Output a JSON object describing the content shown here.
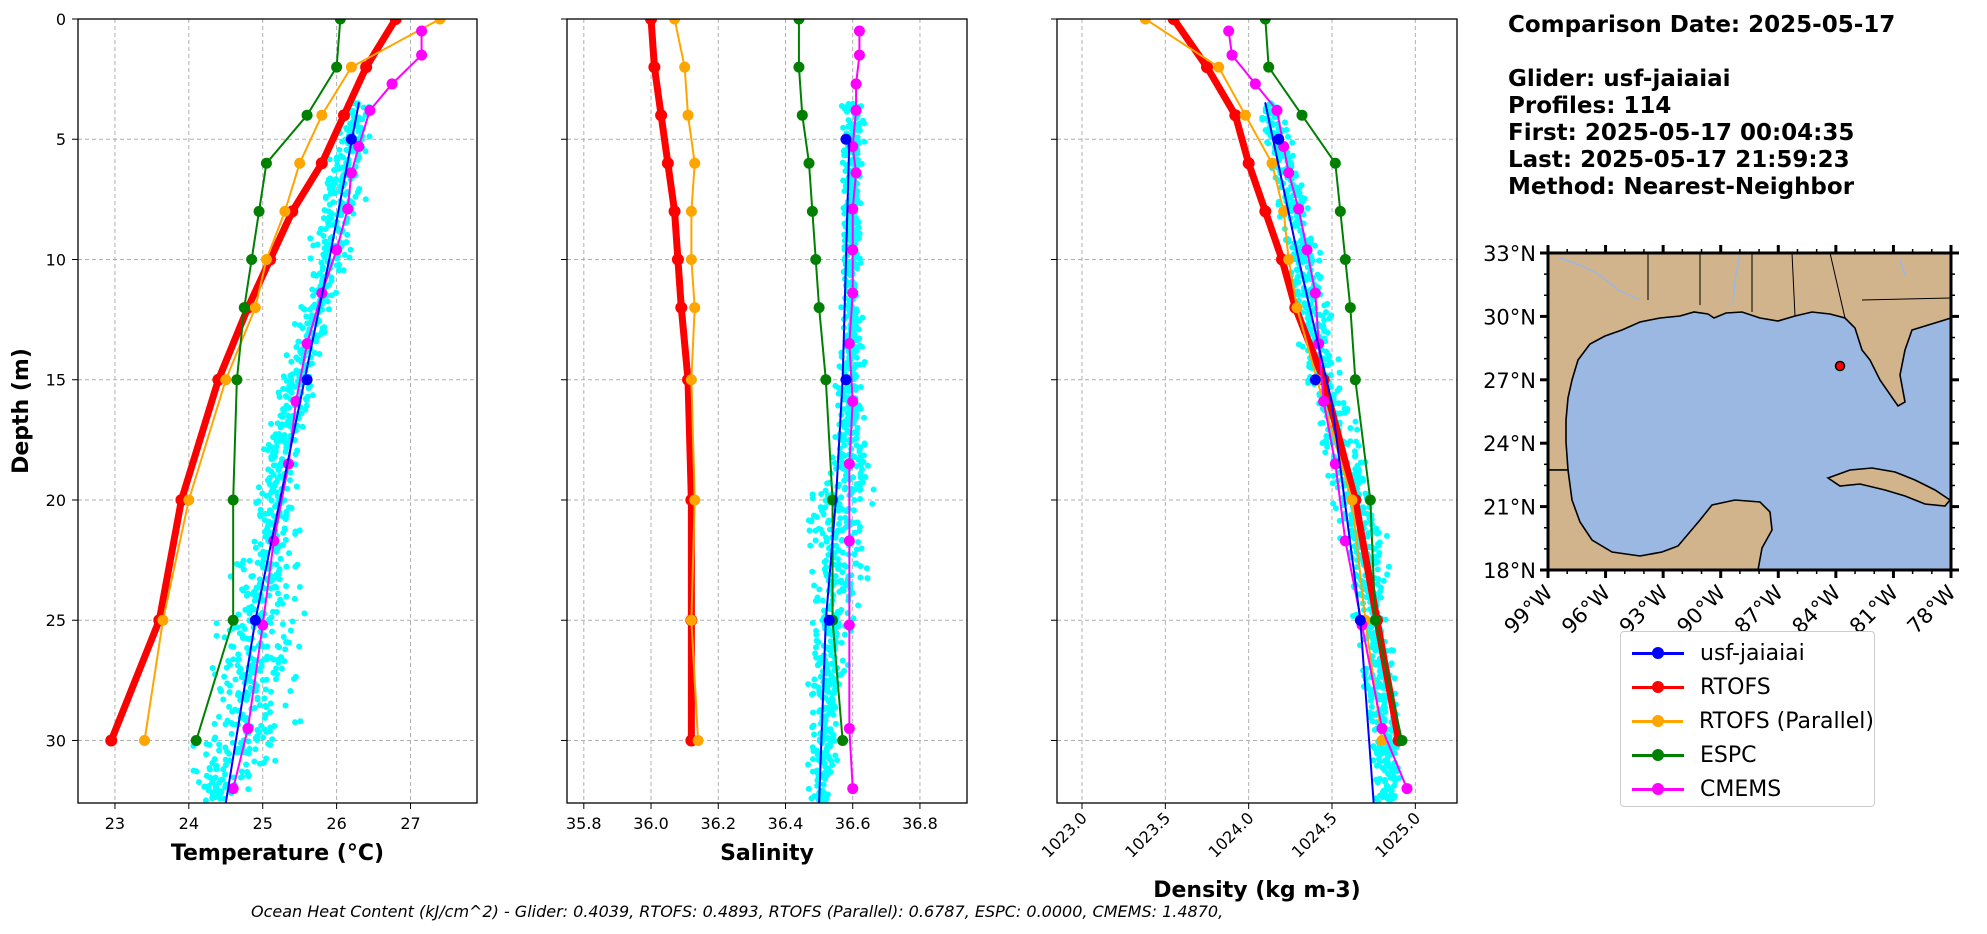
{
  "info": {
    "comparison_date": "Comparison Date: 2025-05-17",
    "glider": "Glider: usf-jaiaiai",
    "profiles": "Profiles: 114",
    "first": "First: 2025-05-17 00:04:35",
    "last": "Last: 2025-05-17 21:59:23",
    "method": "Method: Nearest-Neighbor"
  },
  "footer": "Ocean Heat Content (kJ/cm^2) - Glider: 0.4039,  RTOFS: 0.4893,  RTOFS (Parallel): 0.6787,  ESPC: 0.0000,  CMEMS: 1.4870,",
  "colors": {
    "glider": "#0000ff",
    "scatter": "#00ffff",
    "rtofs": "#ff0000",
    "rtofs_parallel": "#ffa500",
    "espc": "#008000",
    "cmems": "#ff00ff",
    "land": "#d2b48c",
    "ocean": "#9ab8e2"
  },
  "legend": [
    {
      "label": "usf-jaiaiai",
      "color": "#0000ff"
    },
    {
      "label": "RTOFS",
      "color": "#ff0000"
    },
    {
      "label": "RTOFS (Parallel)",
      "color": "#ffa500"
    },
    {
      "label": "ESPC",
      "color": "#008000"
    },
    {
      "label": "CMEMS",
      "color": "#ff00ff"
    }
  ],
  "chart_data": [
    {
      "type": "line",
      "xlabel": "Temperature (°C)",
      "ylabel": "Depth (m)",
      "xlim": [
        22.5,
        27.9
      ],
      "ylim": [
        32.6,
        0
      ],
      "xticks": [
        "23",
        "24",
        "25",
        "26",
        "27"
      ],
      "yticks": [
        "0",
        "5",
        "10",
        "15",
        "20",
        "25",
        "30"
      ],
      "grid": true,
      "series": [
        {
          "name": "usf-jaiaiai",
          "x": [
            26.2,
            25.6,
            24.9
          ],
          "y": [
            5,
            15,
            25
          ],
          "line_x": [
            26.3,
            25.9,
            25.5,
            24.9,
            24.5
          ],
          "line_y": [
            3.5,
            10,
            16,
            25,
            32.6
          ]
        },
        {
          "name": "RTOFS",
          "x": [
            26.8,
            26.4,
            26.1,
            25.8,
            25.4,
            25.1,
            24.8,
            24.4,
            23.9,
            23.6,
            22.95
          ],
          "y": [
            0,
            2,
            4,
            6,
            8,
            10,
            12,
            15,
            20,
            25,
            30
          ]
        },
        {
          "name": "RTOFS (Parallel)",
          "x": [
            27.4,
            26.2,
            25.8,
            25.5,
            25.3,
            25.05,
            24.9,
            24.5,
            24.0,
            23.65,
            23.4
          ],
          "y": [
            0,
            2,
            4,
            6,
            8,
            10,
            12,
            15,
            20,
            25,
            30
          ]
        },
        {
          "name": "ESPC",
          "x": [
            26.05,
            26.0,
            25.6,
            25.05,
            24.95,
            24.85,
            24.75,
            24.65,
            24.6,
            24.6,
            24.1
          ],
          "y": [
            0,
            2,
            4,
            6,
            8,
            10,
            12,
            15,
            20,
            25,
            30
          ]
        },
        {
          "name": "CMEMS",
          "x": [
            27.15,
            27.15,
            26.75,
            26.45,
            26.3,
            26.2,
            26.15,
            26.0,
            25.8,
            25.6,
            25.45,
            25.35,
            25.15,
            25.0,
            24.8,
            24.6
          ],
          "y": [
            0.5,
            1.5,
            2.7,
            3.8,
            5.3,
            6.4,
            7.9,
            9.6,
            11.4,
            13.5,
            15.9,
            18.5,
            21.7,
            25.2,
            29.5,
            32.0
          ]
        }
      ],
      "scatter_band": [
        {
          "y": 3.5,
          "x": [
            26.1,
            26.5
          ]
        },
        {
          "y": 8,
          "x": [
            25.7,
            26.4
          ]
        },
        {
          "y": 14,
          "x": [
            25.3,
            25.8
          ]
        },
        {
          "y": 19,
          "x": [
            24.9,
            25.5
          ]
        },
        {
          "y": 22,
          "x": [
            24.7,
            25.5
          ]
        },
        {
          "y": 26,
          "x": [
            24.1,
            25.7
          ]
        },
        {
          "y": 30,
          "x": [
            24.0,
            25.5
          ]
        },
        {
          "y": 32.6,
          "x": [
            24.0,
            24.7
          ]
        }
      ]
    },
    {
      "type": "line",
      "xlabel": "Salinity",
      "xlim": [
        35.75,
        36.94
      ],
      "ylim": [
        32.6,
        0
      ],
      "xticks": [
        "35.8",
        "36.0",
        "36.2",
        "36.4",
        "36.6",
        "36.8"
      ],
      "grid": true,
      "series": [
        {
          "name": "usf-jaiaiai",
          "x": [
            36.58,
            36.58,
            36.53
          ],
          "y": [
            5,
            15,
            25
          ],
          "line_x": [
            36.59,
            36.57,
            36.55,
            36.52,
            36.5
          ],
          "line_y": [
            5,
            15,
            20,
            25,
            32.6
          ]
        },
        {
          "name": "RTOFS",
          "x": [
            36.0,
            36.01,
            36.03,
            36.05,
            36.07,
            36.08,
            36.09,
            36.11,
            36.12,
            36.12,
            36.12
          ],
          "y": [
            0,
            2,
            4,
            6,
            8,
            10,
            12,
            15,
            20,
            25,
            30
          ]
        },
        {
          "name": "RTOFS (Parallel)",
          "x": [
            36.07,
            36.1,
            36.11,
            36.13,
            36.12,
            36.12,
            36.13,
            36.12,
            36.13,
            36.12,
            36.14
          ],
          "y": [
            0,
            2,
            4,
            6,
            8,
            10,
            12,
            15,
            20,
            25,
            30
          ]
        },
        {
          "name": "ESPC",
          "x": [
            36.44,
            36.44,
            36.45,
            36.47,
            36.48,
            36.49,
            36.5,
            36.52,
            36.54,
            36.54,
            36.57
          ],
          "y": [
            0,
            2,
            4,
            6,
            8,
            10,
            12,
            15,
            20,
            25,
            30
          ]
        },
        {
          "name": "CMEMS",
          "x": [
            36.62,
            36.62,
            36.61,
            36.61,
            36.6,
            36.61,
            36.6,
            36.6,
            36.6,
            36.59,
            36.6,
            36.59,
            36.59,
            36.59,
            36.59,
            36.6
          ],
          "y": [
            0.5,
            1.5,
            2.7,
            3.8,
            5.3,
            6.4,
            7.9,
            9.6,
            11.4,
            13.5,
            15.9,
            18.5,
            21.7,
            25.2,
            29.5,
            32.0
          ]
        }
      ],
      "scatter_band": [
        {
          "y": 3.5,
          "x": [
            36.56,
            36.64
          ]
        },
        {
          "y": 12,
          "x": [
            36.56,
            36.63
          ]
        },
        {
          "y": 18,
          "x": [
            36.53,
            36.65
          ]
        },
        {
          "y": 20,
          "x": [
            36.45,
            36.68
          ]
        },
        {
          "y": 23,
          "x": [
            36.45,
            36.68
          ]
        },
        {
          "y": 26,
          "x": [
            36.46,
            36.6
          ]
        },
        {
          "y": 32.6,
          "x": [
            36.47,
            36.55
          ]
        }
      ]
    },
    {
      "type": "line",
      "xlabel": "Density (kg m-3)",
      "xlim": [
        1022.85,
        1025.25
      ],
      "ylim": [
        32.6,
        0
      ],
      "xticks": [
        "1023.0",
        "1023.5",
        "1024.0",
        "1024.5",
        "1025.0"
      ],
      "grid": true,
      "series": [
        {
          "name": "usf-jaiaiai",
          "x": [
            1024.18,
            1024.4,
            1024.67
          ],
          "y": [
            5,
            15,
            25
          ],
          "line_x": [
            1024.1,
            1024.3,
            1024.5,
            1024.67,
            1024.75
          ],
          "line_y": [
            3.5,
            10,
            16,
            25,
            32.6
          ]
        },
        {
          "name": "RTOFS",
          "x": [
            1023.55,
            1023.75,
            1023.92,
            1024.0,
            1024.1,
            1024.2,
            1024.28,
            1024.45,
            1024.64,
            1024.77,
            1024.9
          ],
          "y": [
            0,
            2,
            4,
            6,
            8,
            10,
            12,
            15,
            20,
            25,
            30
          ]
        },
        {
          "name": "RTOFS (Parallel)",
          "x": [
            1023.38,
            1023.82,
            1023.98,
            1024.14,
            1024.21,
            1024.24,
            1024.29,
            1024.41,
            1024.62,
            1024.7,
            1024.8
          ],
          "y": [
            0,
            2,
            4,
            6,
            8,
            10,
            12,
            15,
            20,
            25,
            30
          ]
        },
        {
          "name": "ESPC",
          "x": [
            1024.1,
            1024.12,
            1024.32,
            1024.52,
            1024.55,
            1024.58,
            1024.61,
            1024.64,
            1024.73,
            1024.76,
            1024.92
          ],
          "y": [
            0,
            2,
            4,
            6,
            8,
            10,
            12,
            15,
            20,
            25,
            30
          ]
        },
        {
          "name": "CMEMS",
          "x": [
            1023.88,
            1023.9,
            1024.04,
            1024.17,
            1024.21,
            1024.24,
            1024.3,
            1024.35,
            1024.4,
            1024.42,
            1024.45,
            1024.52,
            1024.58,
            1024.68,
            1024.8,
            1024.95
          ],
          "y": [
            0.5,
            1.5,
            2.7,
            3.8,
            5.3,
            6.4,
            7.9,
            9.6,
            11.4,
            13.5,
            15.9,
            18.5,
            21.7,
            25.2,
            29.5,
            32.0
          ]
        }
      ],
      "scatter_band": [
        {
          "y": 3.5,
          "x": [
            1024.05,
            1024.2
          ]
        },
        {
          "y": 8,
          "x": [
            1024.15,
            1024.4
          ]
        },
        {
          "y": 14,
          "x": [
            1024.3,
            1024.55
          ]
        },
        {
          "y": 19,
          "x": [
            1024.45,
            1024.75
          ]
        },
        {
          "y": 22,
          "x": [
            1024.55,
            1024.85
          ]
        },
        {
          "y": 27,
          "x": [
            1024.65,
            1024.9
          ]
        },
        {
          "y": 32.6,
          "x": [
            1024.75,
            1024.95
          ]
        }
      ]
    }
  ],
  "map": {
    "lon_ticks": [
      "99°W",
      "96°W",
      "93°W",
      "90°W",
      "87°W",
      "84°W",
      "81°W",
      "78°W"
    ],
    "lat_ticks": [
      "33°N",
      "30°N",
      "27°N",
      "24°N",
      "21°N",
      "18°N"
    ],
    "lon_range": [
      -99,
      -78
    ],
    "lat_range": [
      18,
      33
    ],
    "glider_position": {
      "lon": -82.4,
      "lat": 27.9
    }
  }
}
